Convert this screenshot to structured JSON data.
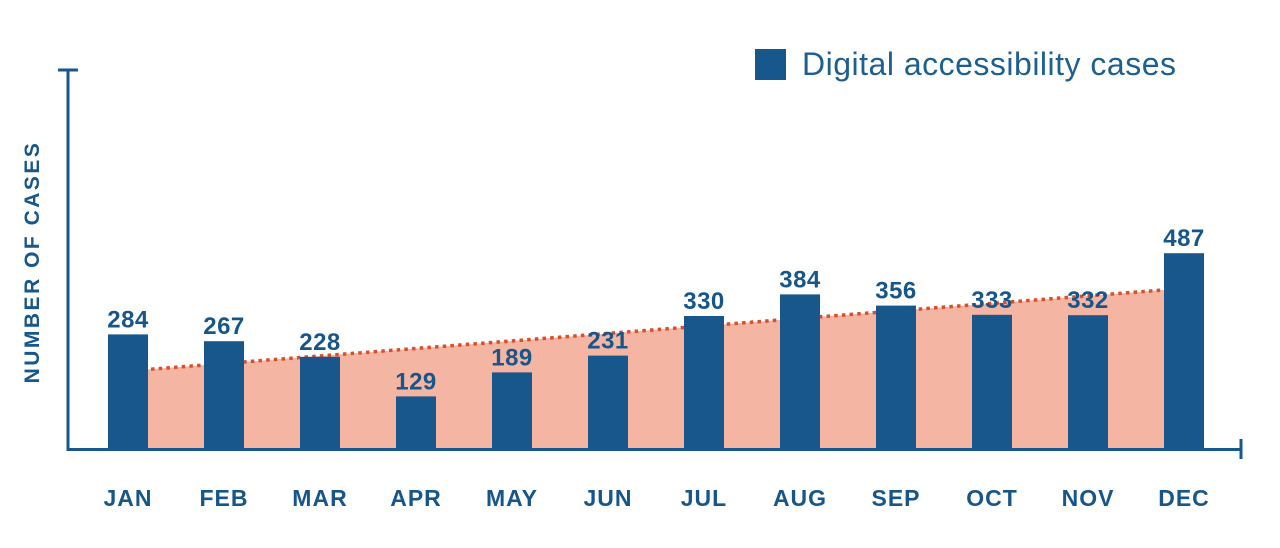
{
  "legend": {
    "label": "Digital accessibility cases",
    "swatch_color": "#17578C"
  },
  "chart_data": {
    "type": "bar",
    "title": "",
    "categories": [
      "JAN",
      "FEB",
      "MAR",
      "APR",
      "MAY",
      "JUN",
      "JUL",
      "AUG",
      "SEP",
      "OCT",
      "NOV",
      "DEC"
    ],
    "values": [
      284,
      267,
      228,
      129,
      189,
      231,
      330,
      384,
      356,
      333,
      332,
      487
    ],
    "xlabel": "",
    "ylabel": "NUMBER OF CASES",
    "legend_label": "Digital accessibility cases",
    "legend_position": "top-right",
    "ylim": [
      0,
      950
    ],
    "grid": false,
    "y_tick_labels": [],
    "trend": {
      "type": "linear-regression",
      "style": "dotted",
      "start_value": 192,
      "end_value": 399
    },
    "colors": {
      "bar": "#17578C",
      "axis": "#17578C",
      "label": "#17568B",
      "trend_line": "#D94F2B",
      "trend_area": "#F4B5A3"
    }
  }
}
